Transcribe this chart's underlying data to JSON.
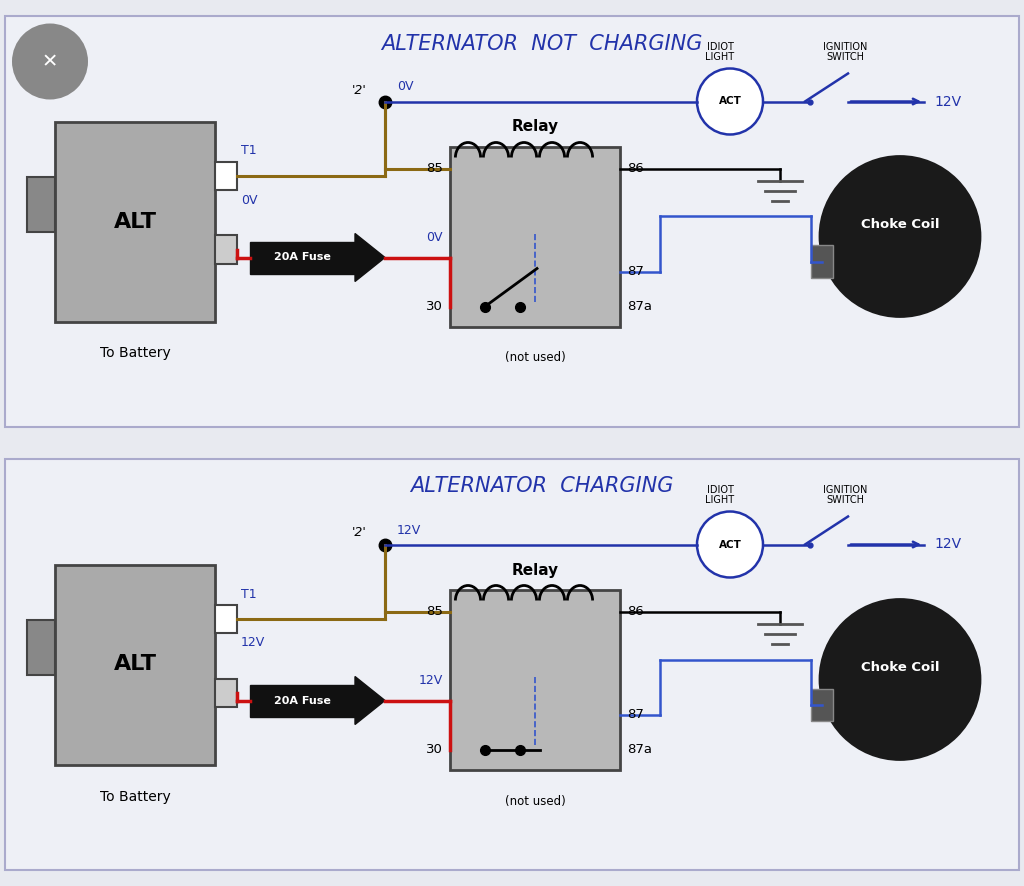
{
  "bg_color": "#e8eaf0",
  "panel_color": "#eef0f6",
  "title1": "ALTERNATOR  NOT  CHARGING",
  "title2": "ALTERNATOR  CHARGING",
  "title_color": "#2233aa",
  "title_fontsize": 15,
  "label_color": "#2233aa",
  "label_fontsize": 9,
  "diagram1": {
    "voltage_T1": "T1",
    "voltage_wire1": "0V",
    "voltage_node": "0V",
    "relay_label_left": "0V",
    "is_charging": false
  },
  "diagram2": {
    "voltage_T1": "T1",
    "voltage_wire1": "12V",
    "voltage_node": "12V",
    "relay_label_left": "12V",
    "is_charging": true
  }
}
